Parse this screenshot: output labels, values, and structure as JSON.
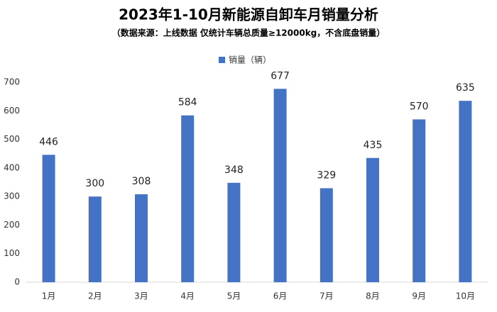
{
  "chart_data": {
    "type": "bar",
    "title": "2023年1-10月新能源自卸车月销量分析",
    "subtitle": "（数据来源：上线数据 仅统计车辆总质量≥12000kg，不含底盘销量）",
    "categories": [
      "1月",
      "2月",
      "3月",
      "4月",
      "5月",
      "6月",
      "7月",
      "8月",
      "9月",
      "10月"
    ],
    "series": [
      {
        "name": "销量（辆）",
        "color": "#4472c4",
        "values": [
          446,
          300,
          308,
          584,
          348,
          677,
          329,
          435,
          570,
          635
        ]
      }
    ],
    "ylim": [
      0,
      700
    ],
    "yticks": [
      0,
      100,
      200,
      300,
      400,
      500,
      600,
      700
    ],
    "grid": false,
    "legend": "top"
  }
}
